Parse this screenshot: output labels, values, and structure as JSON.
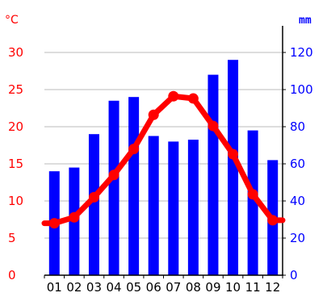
{
  "colors": {
    "bars": "#0000ff",
    "line": "#ff0000",
    "left_axis_text": "#ff0000",
    "right_axis_text": "#0000ff",
    "grid": "#bbbbbb",
    "axis": "#000000"
  },
  "chart_data": {
    "type": "bar+line",
    "categories": [
      "01",
      "02",
      "03",
      "04",
      "05",
      "06",
      "07",
      "08",
      "09",
      "10",
      "11",
      "12"
    ],
    "left_axis": {
      "unit": "°C",
      "ticks": [
        "0",
        "5",
        "10",
        "15",
        "20",
        "25",
        "30"
      ],
      "ylim": [
        0,
        32.5
      ]
    },
    "right_axis": {
      "unit": "mm",
      "ticks": [
        "0",
        "20",
        "40",
        "60",
        "80",
        "100",
        "120"
      ],
      "ylim": [
        0,
        130
      ]
    },
    "grid": "horizontal",
    "series": [
      {
        "type": "bar",
        "axis": "right",
        "values": [
          56,
          58,
          76,
          94,
          96,
          75,
          72,
          73,
          108,
          116,
          78,
          62
        ]
      },
      {
        "type": "line",
        "axis": "left",
        "values": [
          7.0,
          7.8,
          10.5,
          13.5,
          17.0,
          21.6,
          24.1,
          23.8,
          20.1,
          16.3,
          10.9,
          7.4
        ]
      }
    ]
  }
}
